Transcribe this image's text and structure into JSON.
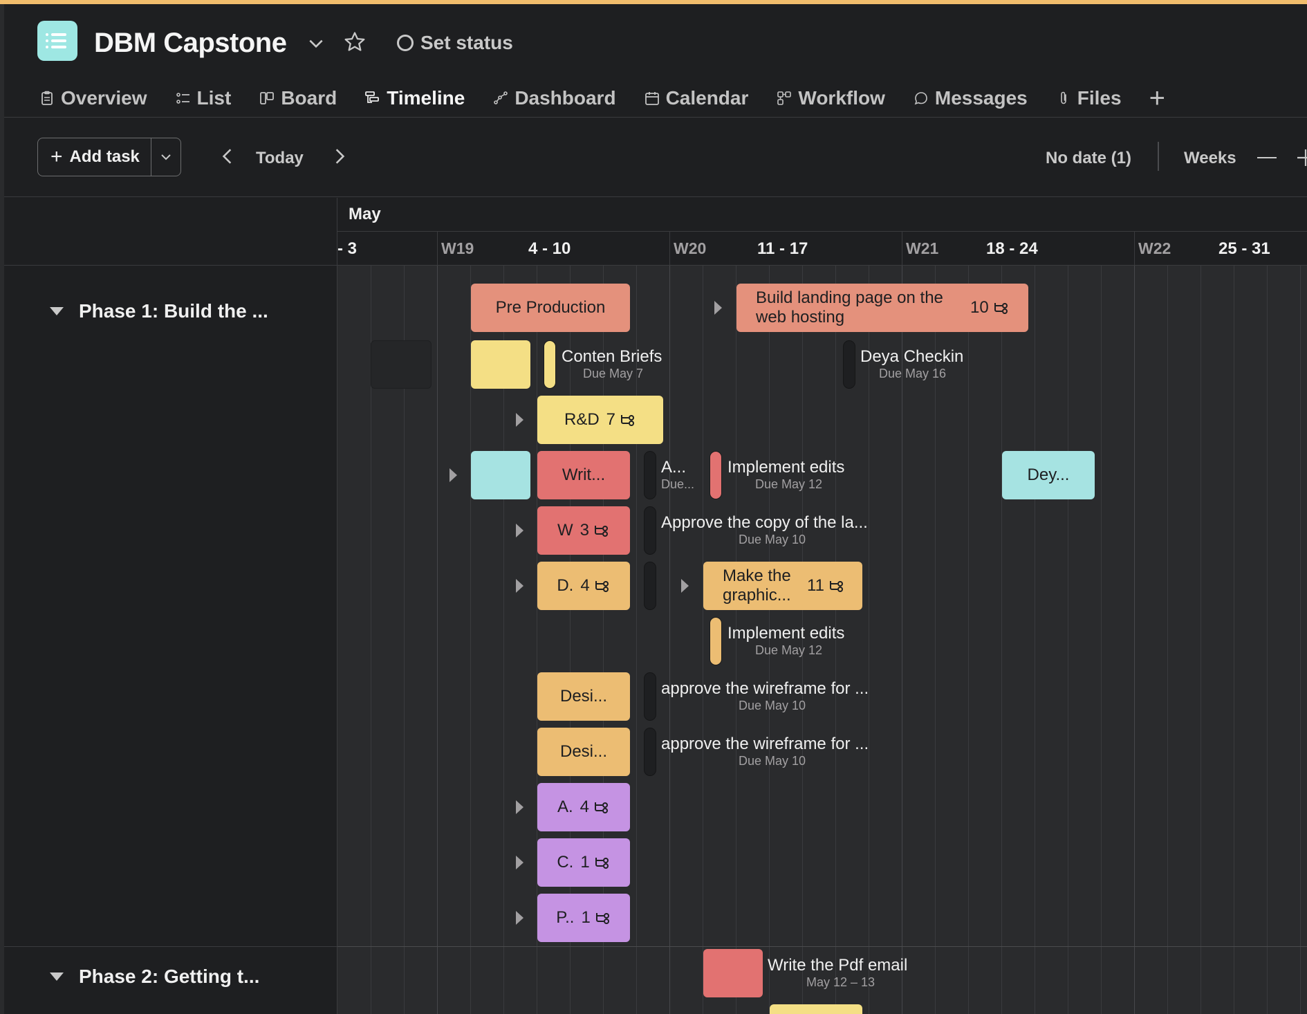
{
  "project": {
    "title": "DBM Capstone",
    "set_status": "Set status",
    "icon": "list-icon",
    "icon_color": "#9ee7e3"
  },
  "tabs": [
    {
      "label": "Overview",
      "icon": "clipboard-icon"
    },
    {
      "label": "List",
      "icon": "list-icon"
    },
    {
      "label": "Board",
      "icon": "board-icon"
    },
    {
      "label": "Timeline",
      "icon": "timeline-icon",
      "active": true
    },
    {
      "label": "Dashboard",
      "icon": "dashboard-icon"
    },
    {
      "label": "Calendar",
      "icon": "calendar-icon"
    },
    {
      "label": "Workflow",
      "icon": "workflow-icon"
    },
    {
      "label": "Messages",
      "icon": "chat-icon"
    },
    {
      "label": "Files",
      "icon": "paperclip-icon"
    }
  ],
  "toolbar": {
    "add_task": "Add task",
    "today": "Today",
    "no_date": "No date (1)",
    "weeks": "Weeks"
  },
  "timeline": {
    "month": "May",
    "weeks": [
      {
        "range": "- 3"
      },
      {
        "label": "W19",
        "range": "4 - 10"
      },
      {
        "label": "W20",
        "range": "11 - 17"
      },
      {
        "label": "W21",
        "range": "18 - 24"
      },
      {
        "label": "W22",
        "range": "25 - 31"
      }
    ]
  },
  "sections": [
    {
      "name": "Phase 1: Build the ..."
    },
    {
      "name": "Phase 2: Getting t..."
    }
  ],
  "tasks": {
    "pre_production": "Pre Production",
    "landing_page": {
      "title": "Build landing page on the web hosting",
      "count": "10"
    },
    "content_briefs": {
      "title": "Conten Briefs",
      "due": "Due May 7"
    },
    "deya_checkin": {
      "title": "Deya Checkin",
      "due": "Due May 16"
    },
    "rnd": {
      "title": "R&D",
      "count": "7"
    },
    "writ": "Writ...",
    "a_task": {
      "title": "A...",
      "due": "Due..."
    },
    "implement_edits_1": {
      "title": "Implement edits",
      "due": "Due May 12"
    },
    "dey": "Dey...",
    "w": {
      "title": "W",
      "count": "3"
    },
    "approve_copy": {
      "title": "Approve the copy of the la...",
      "due": "Due May 10"
    },
    "d": {
      "title": "D.",
      "count": "4"
    },
    "make_graphic": {
      "title": "Make the graphic...",
      "count": "11"
    },
    "implement_edits_2": {
      "title": "Implement edits",
      "due": "Due May 12"
    },
    "desi_1": "Desi...",
    "approve_wire_1": {
      "title": "approve the wireframe for ...",
      "due": "Due May 10"
    },
    "desi_2": "Desi...",
    "approve_wire_2": {
      "title": "approve the wireframe for ...",
      "due": "Due May 10"
    },
    "a4": {
      "title": "A.",
      "count": "4"
    },
    "c1": {
      "title": "C.",
      "count": "1"
    },
    "p1": {
      "title": "P..",
      "count": "1"
    },
    "pdf_email": {
      "title": "Write the Pdf email",
      "due": "May 12 – 13"
    }
  },
  "colors": {
    "salmon": "#e4917c",
    "yellow": "#f4df85",
    "teal": "#a6e3e2",
    "red": "#e27271",
    "orange": "#ecbd73",
    "purple": "#c593e3",
    "accent_stripe": "#f1bd6c"
  }
}
